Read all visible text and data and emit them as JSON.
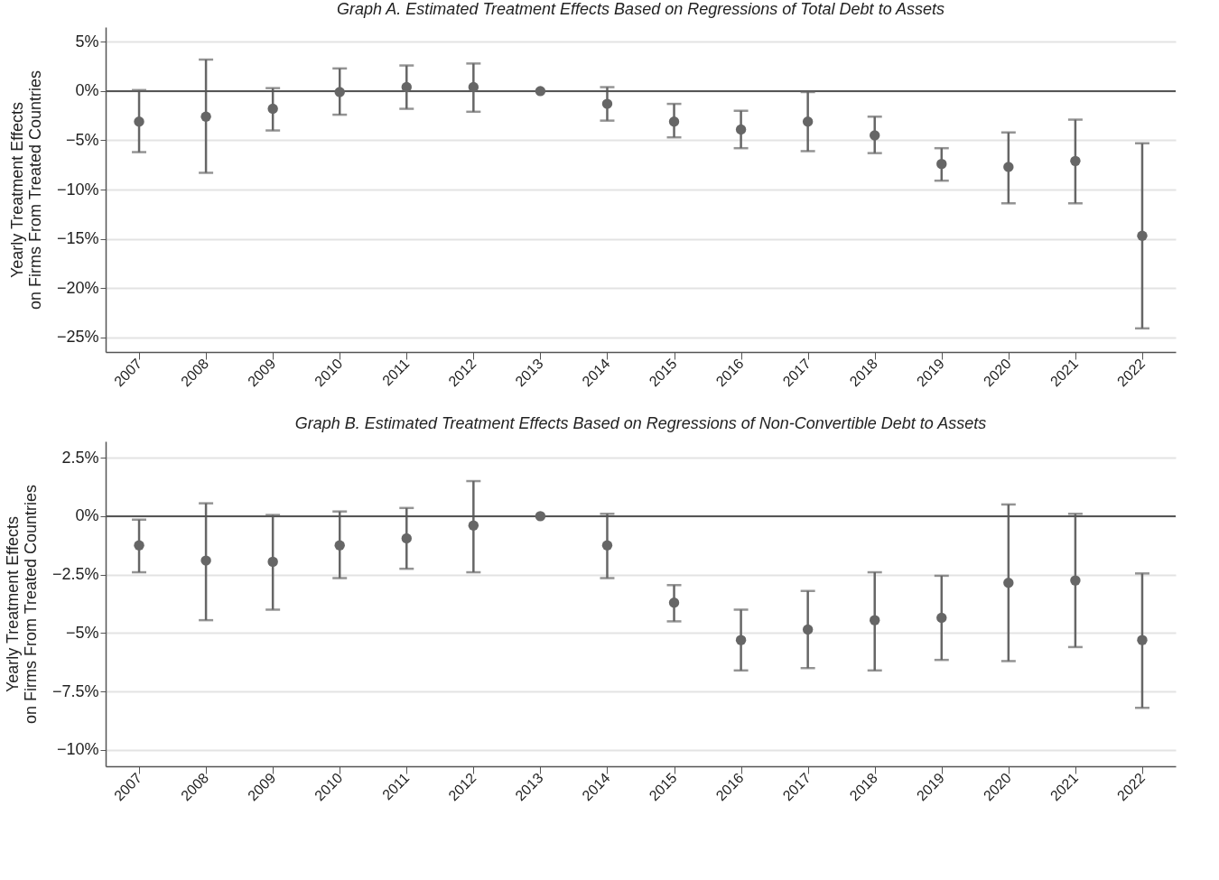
{
  "chart_data": [
    {
      "type": "scatter",
      "title": "Graph A. Estimated Treatment Effects Based on Regressions of Total Debt to Assets",
      "ylabel": "Yearly Treatment Effects\non Firms From Treated Countries",
      "categories": [
        "2007",
        "2008",
        "2009",
        "2010",
        "2011",
        "2012",
        "2013",
        "2014",
        "2015",
        "2016",
        "2017",
        "2018",
        "2019",
        "2020",
        "2021",
        "2022"
      ],
      "series": [
        {
          "color": "#666666",
          "values": [
            -3.1,
            -2.6,
            -1.8,
            -0.1,
            0.4,
            0.4,
            0,
            -1.3,
            -3.1,
            -3.9,
            -3.1,
            -4.5,
            -7.4,
            -7.7,
            -7.1,
            -14.7
          ],
          "errors": [
            [
              -6.2,
              0.1
            ],
            [
              -8.3,
              3.2
            ],
            [
              -4.0,
              0.3
            ],
            [
              -2.4,
              2.3
            ],
            [
              -1.8,
              2.6
            ],
            [
              -2.1,
              2.8
            ],
            null,
            [
              -3.0,
              0.4
            ],
            [
              -4.7,
              -1.3
            ],
            [
              -5.8,
              -2.0
            ],
            [
              -6.1,
              -0.1
            ],
            [
              -6.3,
              -2.6
            ],
            [
              -9.1,
              -5.8
            ],
            [
              -11.4,
              -4.2
            ],
            [
              -11.4,
              -2.9
            ],
            [
              -24.1,
              -5.3
            ]
          ]
        }
      ],
      "ylim": [
        -26.5,
        6.5
      ],
      "yticks": [
        {
          "value": 5,
          "label": "5%"
        },
        {
          "value": 0,
          "label": "0%"
        },
        {
          "value": -5,
          "label": "−5%"
        },
        {
          "value": -10,
          "label": "−10%"
        },
        {
          "value": -15,
          "label": "−15%"
        },
        {
          "value": -20,
          "label": "−20%"
        },
        {
          "value": -25,
          "label": "−25%"
        }
      ],
      "grid": "y",
      "marker": "circle",
      "ref_lines": [
        {
          "axis": "y",
          "value": 0,
          "color": "#555555"
        }
      ]
    },
    {
      "type": "scatter",
      "title": "Graph B. Estimated Treatment Effects Based on Regressions of Non-Convertible Debt to Assets",
      "ylabel": "Yearly Treatment Effects\non Firms From Treated Countries",
      "categories": [
        "2007",
        "2008",
        "2009",
        "2010",
        "2011",
        "2012",
        "2013",
        "2014",
        "2015",
        "2016",
        "2017",
        "2018",
        "2019",
        "2020",
        "2021",
        "2022"
      ],
      "series": [
        {
          "color": "#666666",
          "values": [
            -1.25,
            -1.9,
            -1.95,
            -1.25,
            -0.95,
            -0.4,
            0,
            -1.25,
            -3.7,
            -5.3,
            -4.85,
            -4.45,
            -4.35,
            -2.85,
            -2.75,
            -5.3
          ],
          "errors": [
            [
              -2.4,
              -0.15
            ],
            [
              -4.45,
              0.55
            ],
            [
              -4.0,
              0.05
            ],
            [
              -2.65,
              0.2
            ],
            [
              -2.25,
              0.35
            ],
            [
              -2.4,
              1.5
            ],
            null,
            [
              -2.65,
              0.1
            ],
            [
              -4.5,
              -2.95
            ],
            [
              -6.6,
              -4.0
            ],
            [
              -6.5,
              -3.2
            ],
            [
              -6.6,
              -2.4
            ],
            [
              -6.15,
              -2.55
            ],
            [
              -6.2,
              0.5
            ],
            [
              -5.6,
              0.1
            ],
            [
              -8.2,
              -2.45
            ]
          ]
        }
      ],
      "ylim": [
        -10.7,
        3.2
      ],
      "yticks": [
        {
          "value": 2.5,
          "label": "2.5%"
        },
        {
          "value": 0,
          "label": "0%"
        },
        {
          "value": -2.5,
          "label": "−2.5%"
        },
        {
          "value": -5,
          "label": "−5%"
        },
        {
          "value": -7.5,
          "label": "−7.5%"
        },
        {
          "value": -10,
          "label": "−10%"
        }
      ],
      "grid": "y",
      "marker": "circle",
      "ref_lines": [
        {
          "axis": "y",
          "value": 0,
          "color": "#555555"
        }
      ]
    }
  ]
}
